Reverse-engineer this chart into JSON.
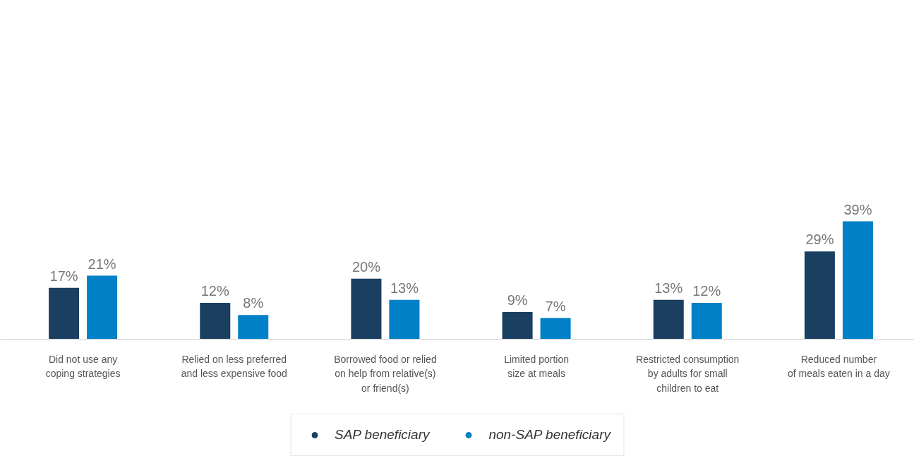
{
  "chart_data": {
    "type": "bar",
    "categories": [
      "Did not use any\ncoping strategies",
      "Relied on less preferred\nand less expensive food",
      "Borrowed food or relied\non help from relative(s)\nor friend(s)",
      "Limited portion\nsize at meals",
      "Restricted consumption\nby adults for small\nchildren to eat",
      "Reduced number\nof meals eaten in a day"
    ],
    "series": [
      {
        "name": "SAP beneficiary",
        "color": "#1a3f61",
        "values": [
          17,
          12,
          20,
          9,
          13,
          29
        ],
        "value_labels": [
          "17%",
          "12%",
          "20%",
          "9%",
          "13%",
          "29%"
        ]
      },
      {
        "name": "non-SAP beneficiary",
        "color": "#0080c6",
        "values": [
          21,
          8,
          13,
          7,
          12,
          39
        ],
        "value_labels": [
          "21%",
          "8%",
          "13%",
          "7%",
          "12%",
          "39%"
        ]
      }
    ],
    "grid": false,
    "legend": "bottom",
    "marker": "circle"
  }
}
